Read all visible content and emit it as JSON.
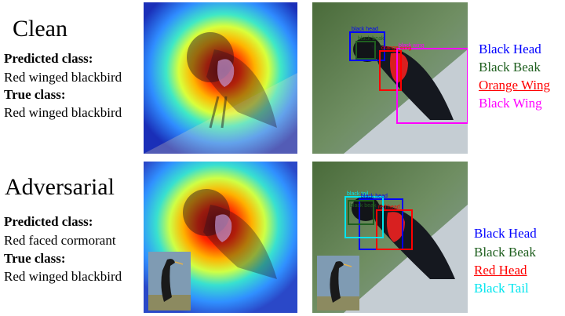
{
  "clean": {
    "title": "Clean",
    "predicted_label": "Predicted class:",
    "predicted_value": "Red winged blackbird",
    "true_label": "True class:",
    "true_value": "Red winged blackbird",
    "legend": [
      {
        "text": "Black Head",
        "color": "#0000ff",
        "underline": false
      },
      {
        "text": "Black Beak",
        "color": "#1f5f1f",
        "underline": false
      },
      {
        "text": "Orange Wing",
        "color": "#ff0000",
        "underline": true
      },
      {
        "text": "Black Wing",
        "color": "#ff00ff",
        "underline": false
      }
    ],
    "box_labels": [
      "black head",
      "black beak",
      "orange wing",
      "black wing"
    ]
  },
  "adversarial": {
    "title": "Adversarial",
    "predicted_label": "Predicted class:",
    "predicted_value": "Red faced cormorant",
    "true_label": "True class:",
    "true_value": "Red winged blackbird",
    "legend": [
      {
        "text": "Black Head",
        "color": "#0000ff",
        "underline": false
      },
      {
        "text": "Black Beak",
        "color": "#1f5f1f",
        "underline": false
      },
      {
        "text": "Red Head",
        "color": "#ff0000",
        "underline": true
      },
      {
        "text": "Black Tail",
        "color": "#00e5ee",
        "underline": false
      }
    ],
    "box_labels": [
      "black head",
      "black beak",
      "red head",
      "black tail"
    ]
  }
}
